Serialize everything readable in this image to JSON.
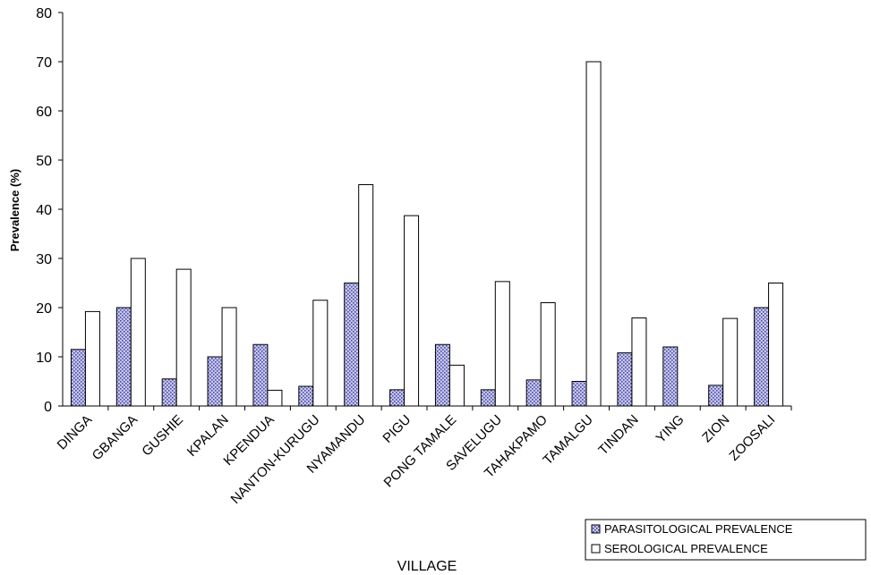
{
  "chart_data": {
    "type": "bar",
    "xlabel": "VILLAGE",
    "ylabel": "Prevalence (%)",
    "ylim": [
      0,
      80
    ],
    "yticks": [
      0,
      10,
      20,
      30,
      40,
      50,
      60,
      70,
      80
    ],
    "grid": false,
    "legend_position": "bottom-right",
    "categories": [
      "DINGA",
      "GBANGA",
      "GUSHIE",
      "KPALAN",
      "KPENDUA",
      "NANTON-KURUGU",
      "NYAMANDU",
      "PIGU",
      "PONG TAMALE",
      "SAVELUGU",
      "TAHAKPAMO",
      "TAMALGU",
      "TINDAN",
      "YING",
      "ZION",
      "ZOOSALI"
    ],
    "series": [
      {
        "name": "PARASITOLOGICAL PREVALENCE",
        "fill": "#c8c8f0",
        "pattern": "dotted",
        "values": [
          11.5,
          20,
          5.5,
          10,
          12.5,
          4,
          25,
          3.3,
          12.5,
          3.3,
          5.3,
          5,
          10.8,
          12,
          4.2,
          20
        ]
      },
      {
        "name": "SEROLOGICAL PREVALENCE",
        "fill": "#ffffff",
        "pattern": "none",
        "values": [
          19.2,
          30,
          27.8,
          20,
          3.2,
          21.5,
          45,
          38.7,
          8.3,
          25.3,
          21,
          70,
          17.9,
          0,
          17.8,
          25
        ]
      }
    ]
  }
}
